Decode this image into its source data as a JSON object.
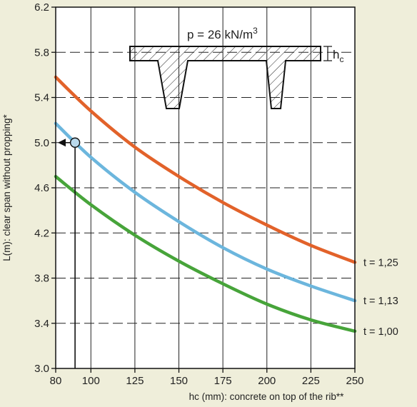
{
  "chart_data": {
    "type": "line",
    "xlabel": "hc (mm): concrete on top of the rib**",
    "ylabel": "L(m): clear span without propping*",
    "xlim": [
      80,
      250
    ],
    "ylim": [
      3.0,
      6.2
    ],
    "xticks": [
      80,
      100,
      125,
      150,
      175,
      200,
      225,
      250
    ],
    "yticks": [
      3.0,
      3.4,
      3.8,
      4.2,
      4.6,
      5.0,
      5.4,
      5.8,
      6.2
    ],
    "grid": "vertical solid, horizontal dashed",
    "series": [
      {
        "name": "t = 1,25",
        "color": "#e2622a",
        "x": [
          80,
          100,
          125,
          150,
          175,
          200,
          225,
          250
        ],
        "y": [
          5.58,
          5.28,
          4.96,
          4.7,
          4.47,
          4.27,
          4.09,
          3.94
        ]
      },
      {
        "name": "t = 1,13",
        "color": "#6cb6dd",
        "x": [
          80,
          100,
          125,
          150,
          175,
          200,
          225,
          250
        ],
        "y": [
          5.17,
          4.87,
          4.56,
          4.3,
          4.07,
          3.88,
          3.73,
          3.6
        ]
      },
      {
        "name": "t = 1,00",
        "color": "#47a43a",
        "x": [
          80,
          100,
          125,
          150,
          175,
          200,
          225,
          250
        ],
        "y": [
          4.7,
          4.45,
          4.18,
          3.95,
          3.75,
          3.57,
          3.43,
          3.33
        ]
      }
    ],
    "annotation": {
      "text_prefix": "p = 26 kN/m",
      "text_sup": "3",
      "dimension_label": "h",
      "dimension_sub": "c"
    },
    "marker": {
      "x": 91,
      "y": 5.0
    }
  }
}
